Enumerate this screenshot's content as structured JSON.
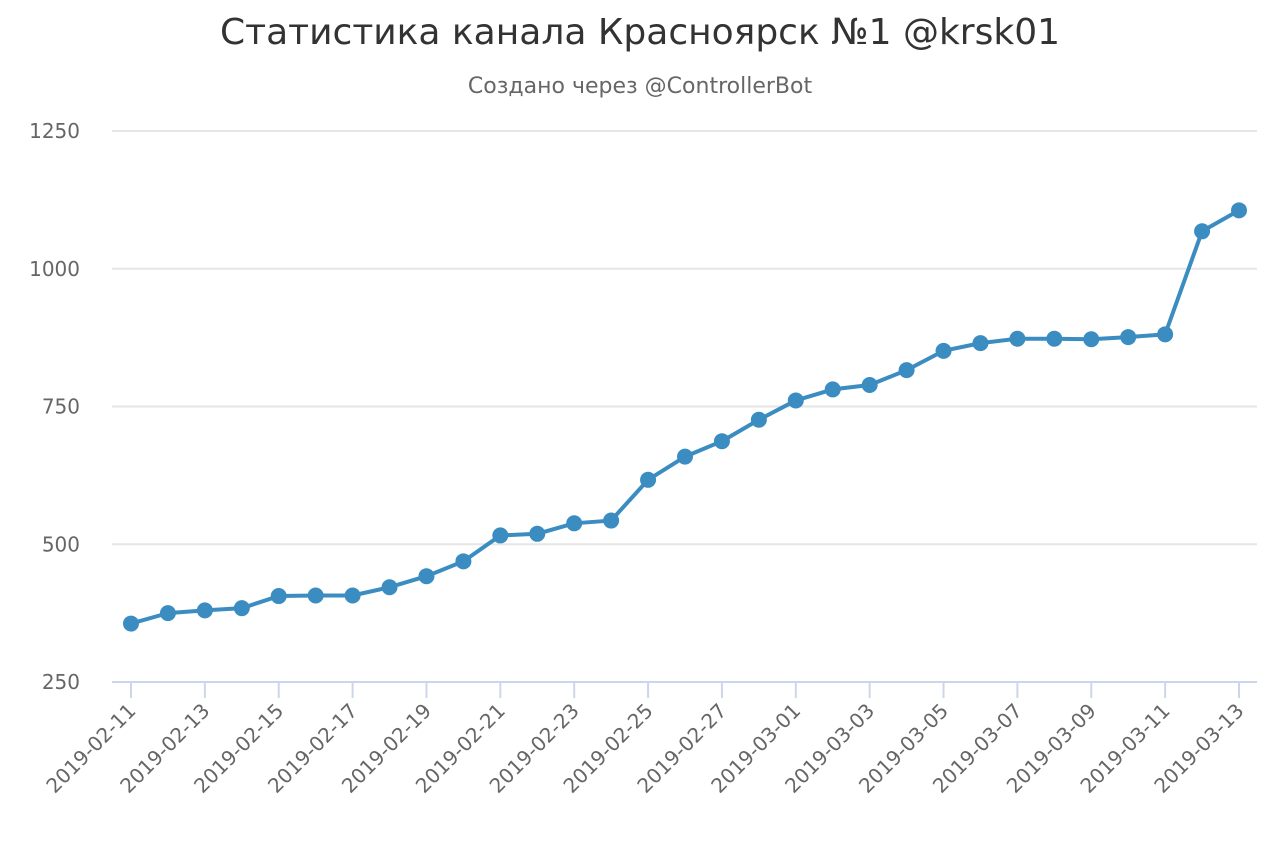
{
  "chart_data": {
    "type": "line",
    "title": "Статистика канала Красноярск №1 @krsk01",
    "subtitle": "Создано через @ControllerBot",
    "xlabel": "",
    "ylabel": "",
    "ylim": [
      250,
      1250
    ],
    "yticks": [
      250,
      500,
      750,
      1000,
      1250
    ],
    "grid": true,
    "x": [
      "2019-02-11",
      "2019-02-12",
      "2019-02-13",
      "2019-02-14",
      "2019-02-15",
      "2019-02-16",
      "2019-02-17",
      "2019-02-18",
      "2019-02-19",
      "2019-02-20",
      "2019-02-21",
      "2019-02-22",
      "2019-02-23",
      "2019-02-24",
      "2019-02-25",
      "2019-02-26",
      "2019-02-27",
      "2019-02-28",
      "2019-03-01",
      "2019-03-02",
      "2019-03-03",
      "2019-03-04",
      "2019-03-05",
      "2019-03-06",
      "2019-03-07",
      "2019-03-08",
      "2019-03-09",
      "2019-03-10",
      "2019-03-11",
      "2019-03-12",
      "2019-03-13"
    ],
    "xtick_labels": [
      "2019-02-11",
      "2019-02-13",
      "2019-02-15",
      "2019-02-17",
      "2019-02-19",
      "2019-02-21",
      "2019-02-23",
      "2019-02-25",
      "2019-02-27",
      "2019-03-01",
      "2019-03-03",
      "2019-03-05",
      "2019-03-07",
      "2019-03-09",
      "2019-03-11",
      "2019-03-13"
    ],
    "series": [
      {
        "values": [
          356,
          375,
          380,
          384,
          406,
          407,
          407,
          422,
          442,
          469,
          516,
          519,
          538,
          543,
          617,
          659,
          687,
          726,
          761,
          781,
          789,
          816,
          851,
          865,
          873,
          873,
          872,
          876,
          881,
          1068,
          1106
        ],
        "color": "#3a8cc1"
      }
    ]
  }
}
